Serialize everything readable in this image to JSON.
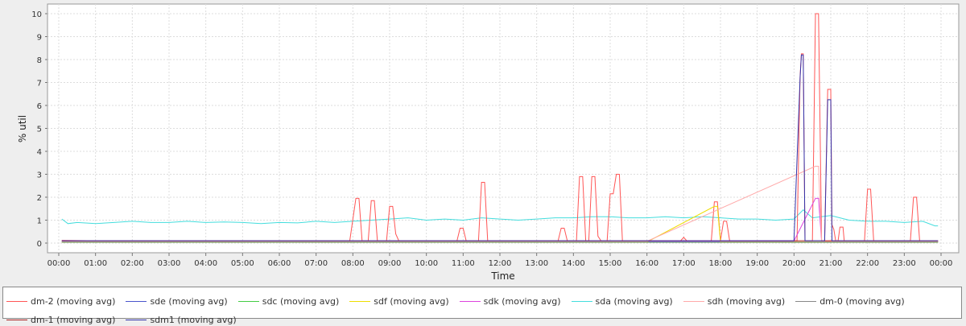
{
  "chart_data": {
    "type": "line",
    "title": "",
    "xlabel": "Time",
    "ylabel": "% util",
    "ylim": [
      0,
      10.5
    ],
    "xlim": [
      "00:00",
      "24:00"
    ],
    "y_ticks": [
      "0",
      "1",
      "2",
      "3",
      "4",
      "5",
      "6",
      "7",
      "8",
      "9",
      "10"
    ],
    "x_ticks": [
      "00:00",
      "01:00",
      "02:00",
      "03:00",
      "04:00",
      "05:00",
      "06:00",
      "07:00",
      "08:00",
      "09:00",
      "10:00",
      "11:00",
      "12:00",
      "13:00",
      "14:00",
      "15:00",
      "16:00",
      "17:00",
      "18:00",
      "19:00",
      "20:00",
      "21:00",
      "22:00",
      "23:00",
      "00:00"
    ],
    "grid": true,
    "legend_position": "bottom",
    "series": [
      {
        "name": "dm-2 (moving avg)",
        "color": "#ff5555",
        "points": [
          [
            "00:05",
            0.12
          ],
          [
            "01:00",
            0.1
          ],
          [
            "02:00",
            0.1
          ],
          [
            "03:00",
            0.1
          ],
          [
            "04:00",
            0.1
          ],
          [
            "05:00",
            0.1
          ],
          [
            "06:00",
            0.1
          ],
          [
            "07:00",
            0.1
          ],
          [
            "07:55",
            0.1
          ],
          [
            "08:05",
            1.95
          ],
          [
            "08:10",
            1.95
          ],
          [
            "08:15",
            0.1
          ],
          [
            "08:25",
            0.1
          ],
          [
            "08:30",
            1.85
          ],
          [
            "08:35",
            1.85
          ],
          [
            "08:40",
            0.1
          ],
          [
            "08:55",
            0.1
          ],
          [
            "09:00",
            1.6
          ],
          [
            "09:05",
            1.6
          ],
          [
            "09:10",
            0.4
          ],
          [
            "09:15",
            0.1
          ],
          [
            "10:00",
            0.1
          ],
          [
            "10:50",
            0.1
          ],
          [
            "10:55",
            0.65
          ],
          [
            "11:00",
            0.65
          ],
          [
            "11:05",
            0.1
          ],
          [
            "11:25",
            0.1
          ],
          [
            "11:30",
            2.65
          ],
          [
            "11:35",
            2.65
          ],
          [
            "11:40",
            0.1
          ],
          [
            "13:00",
            0.1
          ],
          [
            "13:35",
            0.1
          ],
          [
            "13:40",
            0.65
          ],
          [
            "13:45",
            0.65
          ],
          [
            "13:50",
            0.1
          ],
          [
            "14:05",
            0.1
          ],
          [
            "14:10",
            2.9
          ],
          [
            "14:15",
            2.9
          ],
          [
            "14:20",
            0.1
          ],
          [
            "14:25",
            0.1
          ],
          [
            "14:30",
            2.9
          ],
          [
            "14:35",
            2.9
          ],
          [
            "14:40",
            0.3
          ],
          [
            "14:45",
            0.1
          ],
          [
            "14:55",
            0.1
          ],
          [
            "15:00",
            2.15
          ],
          [
            "15:05",
            2.15
          ],
          [
            "15:10",
            3.0
          ],
          [
            "15:15",
            3.0
          ],
          [
            "15:20",
            0.1
          ],
          [
            "16:00",
            0.1
          ],
          [
            "16:55",
            0.1
          ],
          [
            "17:00",
            0.25
          ],
          [
            "17:05",
            0.1
          ],
          [
            "17:45",
            0.1
          ],
          [
            "17:50",
            1.8
          ],
          [
            "17:55",
            1.8
          ],
          [
            "18:00",
            0.1
          ],
          [
            "18:05",
            0.95
          ],
          [
            "18:10",
            0.95
          ],
          [
            "18:15",
            0.1
          ],
          [
            "20:00",
            0.1
          ],
          [
            "20:05",
            0.1
          ],
          [
            "20:10",
            7.25
          ],
          [
            "20:12",
            8.25
          ],
          [
            "20:15",
            8.25
          ],
          [
            "20:18",
            0.1
          ],
          [
            "20:30",
            0.1
          ],
          [
            "20:35",
            10.0
          ],
          [
            "20:40",
            10.0
          ],
          [
            "20:45",
            0.1
          ],
          [
            "20:50",
            0.1
          ],
          [
            "20:55",
            6.7
          ],
          [
            "21:00",
            6.7
          ],
          [
            "21:02",
            0.8
          ],
          [
            "21:05",
            0.6
          ],
          [
            "21:08",
            0.1
          ],
          [
            "21:12",
            0.1
          ],
          [
            "21:15",
            0.7
          ],
          [
            "21:20",
            0.7
          ],
          [
            "21:22",
            0.1
          ],
          [
            "21:55",
            0.1
          ],
          [
            "22:00",
            2.35
          ],
          [
            "22:05",
            2.35
          ],
          [
            "22:10",
            0.1
          ],
          [
            "23:10",
            0.1
          ],
          [
            "23:15",
            2.0
          ],
          [
            "23:20",
            2.0
          ],
          [
            "23:25",
            0.1
          ],
          [
            "23:55",
            0.1
          ]
        ]
      },
      {
        "name": "sde (moving avg)",
        "color": "#4a55cc",
        "points": [
          [
            "00:05",
            0.08
          ],
          [
            "02:00",
            0.06
          ],
          [
            "04:00",
            0.06
          ],
          [
            "06:00",
            0.06
          ],
          [
            "08:00",
            0.05
          ],
          [
            "10:00",
            0.05
          ],
          [
            "12:00",
            0.05
          ],
          [
            "14:00",
            0.05
          ],
          [
            "16:00",
            0.05
          ],
          [
            "18:00",
            0.05
          ],
          [
            "20:00",
            0.05
          ],
          [
            "22:00",
            0.05
          ],
          [
            "23:55",
            0.05
          ]
        ]
      },
      {
        "name": "sdc (moving avg)",
        "color": "#44cc44",
        "points": [
          [
            "00:05",
            0.03
          ],
          [
            "04:00",
            0.03
          ],
          [
            "08:00",
            0.03
          ],
          [
            "12:00",
            0.03
          ],
          [
            "16:00",
            0.03
          ],
          [
            "20:00",
            0.03
          ],
          [
            "23:55",
            0.03
          ]
        ]
      },
      {
        "name": "sdf (moving avg)",
        "color": "#eedd00",
        "points": [
          [
            "00:05",
            0.05
          ],
          [
            "04:00",
            0.05
          ],
          [
            "08:00",
            0.05
          ],
          [
            "12:00",
            0.05
          ],
          [
            "16:00",
            0.05
          ],
          [
            "17:50",
            1.6
          ],
          [
            "17:55",
            1.6
          ],
          [
            "18:00",
            0.05
          ],
          [
            "20:00",
            0.05
          ],
          [
            "23:55",
            0.05
          ]
        ]
      },
      {
        "name": "sdk (moving avg)",
        "color": "#dd44dd",
        "points": [
          [
            "00:05",
            0.1
          ],
          [
            "04:00",
            0.09
          ],
          [
            "08:00",
            0.09
          ],
          [
            "12:00",
            0.09
          ],
          [
            "16:00",
            0.09
          ],
          [
            "20:00",
            0.09
          ],
          [
            "20:35",
            1.95
          ],
          [
            "20:40",
            1.95
          ],
          [
            "20:45",
            0.09
          ],
          [
            "23:55",
            0.09
          ]
        ]
      },
      {
        "name": "sda (moving avg)",
        "color": "#44dddd",
        "points": [
          [
            "00:05",
            1.05
          ],
          [
            "00:15",
            0.85
          ],
          [
            "00:30",
            0.9
          ],
          [
            "01:00",
            0.85
          ],
          [
            "01:30",
            0.9
          ],
          [
            "02:00",
            0.95
          ],
          [
            "02:30",
            0.9
          ],
          [
            "03:00",
            0.9
          ],
          [
            "03:30",
            0.95
          ],
          [
            "04:00",
            0.9
          ],
          [
            "04:30",
            0.92
          ],
          [
            "05:00",
            0.9
          ],
          [
            "05:30",
            0.85
          ],
          [
            "06:00",
            0.9
          ],
          [
            "06:30",
            0.88
          ],
          [
            "07:00",
            0.95
          ],
          [
            "07:30",
            0.9
          ],
          [
            "08:00",
            0.95
          ],
          [
            "08:30",
            1.0
          ],
          [
            "09:00",
            1.05
          ],
          [
            "09:30",
            1.1
          ],
          [
            "10:00",
            1.0
          ],
          [
            "10:30",
            1.05
          ],
          [
            "11:00",
            1.0
          ],
          [
            "11:30",
            1.1
          ],
          [
            "12:00",
            1.05
          ],
          [
            "12:30",
            1.0
          ],
          [
            "13:00",
            1.05
          ],
          [
            "13:30",
            1.1
          ],
          [
            "14:00",
            1.1
          ],
          [
            "14:30",
            1.15
          ],
          [
            "15:00",
            1.15
          ],
          [
            "15:30",
            1.1
          ],
          [
            "16:00",
            1.1
          ],
          [
            "16:30",
            1.15
          ],
          [
            "17:00",
            1.1
          ],
          [
            "17:30",
            1.15
          ],
          [
            "18:00",
            1.1
          ],
          [
            "18:30",
            1.05
          ],
          [
            "19:00",
            1.05
          ],
          [
            "19:30",
            1.0
          ],
          [
            "20:00",
            1.05
          ],
          [
            "20:15",
            1.45
          ],
          [
            "20:30",
            1.1
          ],
          [
            "21:00",
            1.2
          ],
          [
            "21:30",
            1.0
          ],
          [
            "22:00",
            0.95
          ],
          [
            "22:30",
            0.95
          ],
          [
            "23:00",
            0.9
          ],
          [
            "23:30",
            0.95
          ],
          [
            "23:50",
            0.75
          ],
          [
            "23:55",
            0.75
          ]
        ]
      },
      {
        "name": "sdh (moving avg)",
        "color": "#ffaaaa",
        "points": [
          [
            "00:05",
            0.08
          ],
          [
            "08:00",
            0.08
          ],
          [
            "16:00",
            0.08
          ],
          [
            "20:35",
            3.35
          ],
          [
            "20:40",
            3.35
          ],
          [
            "20:45",
            0.08
          ],
          [
            "23:55",
            0.08
          ]
        ]
      },
      {
        "name": "dm-0 (moving avg)",
        "color": "#888888",
        "points": [
          [
            "00:05",
            0.04
          ],
          [
            "08:00",
            0.04
          ],
          [
            "16:00",
            0.04
          ],
          [
            "23:55",
            0.04
          ]
        ]
      },
      {
        "name": "dm-1 (moving avg)",
        "color": "#aa2222",
        "points": [
          [
            "00:05",
            0.1
          ],
          [
            "08:00",
            0.1
          ],
          [
            "16:00",
            0.1
          ],
          [
            "23:55",
            0.1
          ]
        ]
      },
      {
        "name": "sdm1 (moving avg)",
        "color": "#3333aa",
        "points": [
          [
            "00:05",
            0.1
          ],
          [
            "08:00",
            0.1
          ],
          [
            "16:00",
            0.1
          ],
          [
            "20:00",
            0.1
          ],
          [
            "20:10",
            7.2
          ],
          [
            "20:12",
            8.2
          ],
          [
            "20:15",
            8.2
          ],
          [
            "20:18",
            0.1
          ],
          [
            "20:50",
            0.1
          ],
          [
            "20:55",
            6.25
          ],
          [
            "21:00",
            6.25
          ],
          [
            "21:02",
            0.1
          ],
          [
            "23:55",
            0.1
          ]
        ]
      }
    ]
  }
}
